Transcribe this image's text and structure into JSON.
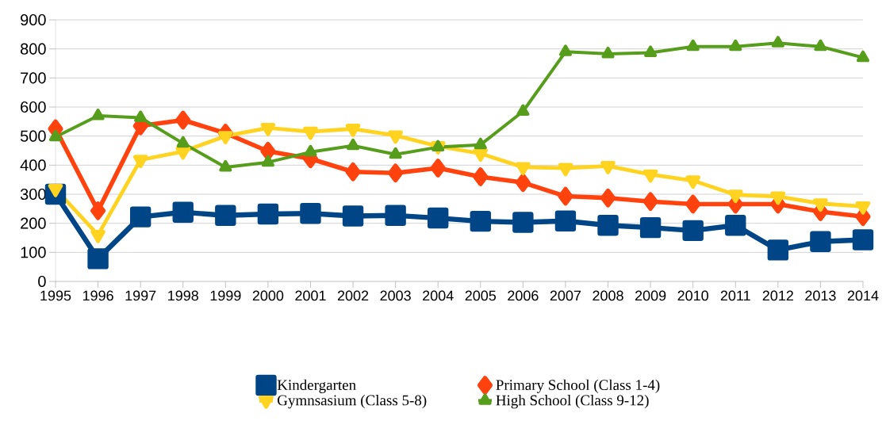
{
  "chart_data": {
    "type": "line",
    "x": [
      1995,
      1996,
      1997,
      1998,
      1999,
      2000,
      2001,
      2002,
      2003,
      2004,
      2005,
      2006,
      2007,
      2008,
      2009,
      2010,
      2011,
      2012,
      2013,
      2014
    ],
    "xlim": [
      1995,
      2014
    ],
    "xticks": [
      1995,
      1996,
      1997,
      1998,
      1999,
      2000,
      2001,
      2002,
      2003,
      2004,
      2005,
      2006,
      2007,
      2008,
      2009,
      2010,
      2011,
      2012,
      2013,
      2014
    ],
    "ylim": [
      0,
      900
    ],
    "yticks": [
      0,
      100,
      200,
      300,
      400,
      500,
      600,
      700,
      800,
      900
    ],
    "grid": "y",
    "legend": "bottom",
    "line_style": "solid",
    "series": [
      {
        "name": "Kindergarten",
        "color": "#004586",
        "marker": "square",
        "values": [
          300,
          78,
          222,
          238,
          227,
          232,
          234,
          225,
          227,
          218,
          207,
          203,
          208,
          193,
          185,
          175,
          193,
          108,
          137,
          143
        ]
      },
      {
        "name": "Primary School (Class 1-4)",
        "color": "#ff420e",
        "marker": "diamond",
        "values": [
          525,
          243,
          535,
          555,
          510,
          448,
          422,
          377,
          373,
          390,
          360,
          340,
          293,
          287,
          275,
          266,
          266,
          266,
          240,
          223
        ]
      },
      {
        "name": "Gymnsasium (Class 5-8)",
        "color": "#ffd320",
        "marker": "triangle-down",
        "values": [
          318,
          160,
          418,
          447,
          500,
          528,
          515,
          525,
          502,
          465,
          440,
          393,
          390,
          397,
          368,
          347,
          298,
          292,
          268,
          258
        ]
      },
      {
        "name": "High School (Class 9-12)",
        "color": "#579d1c",
        "marker": "triangle",
        "values": [
          497,
          570,
          563,
          475,
          393,
          410,
          445,
          467,
          437,
          462,
          470,
          585,
          790,
          783,
          787,
          808,
          808,
          820,
          808,
          770
        ]
      }
    ]
  }
}
